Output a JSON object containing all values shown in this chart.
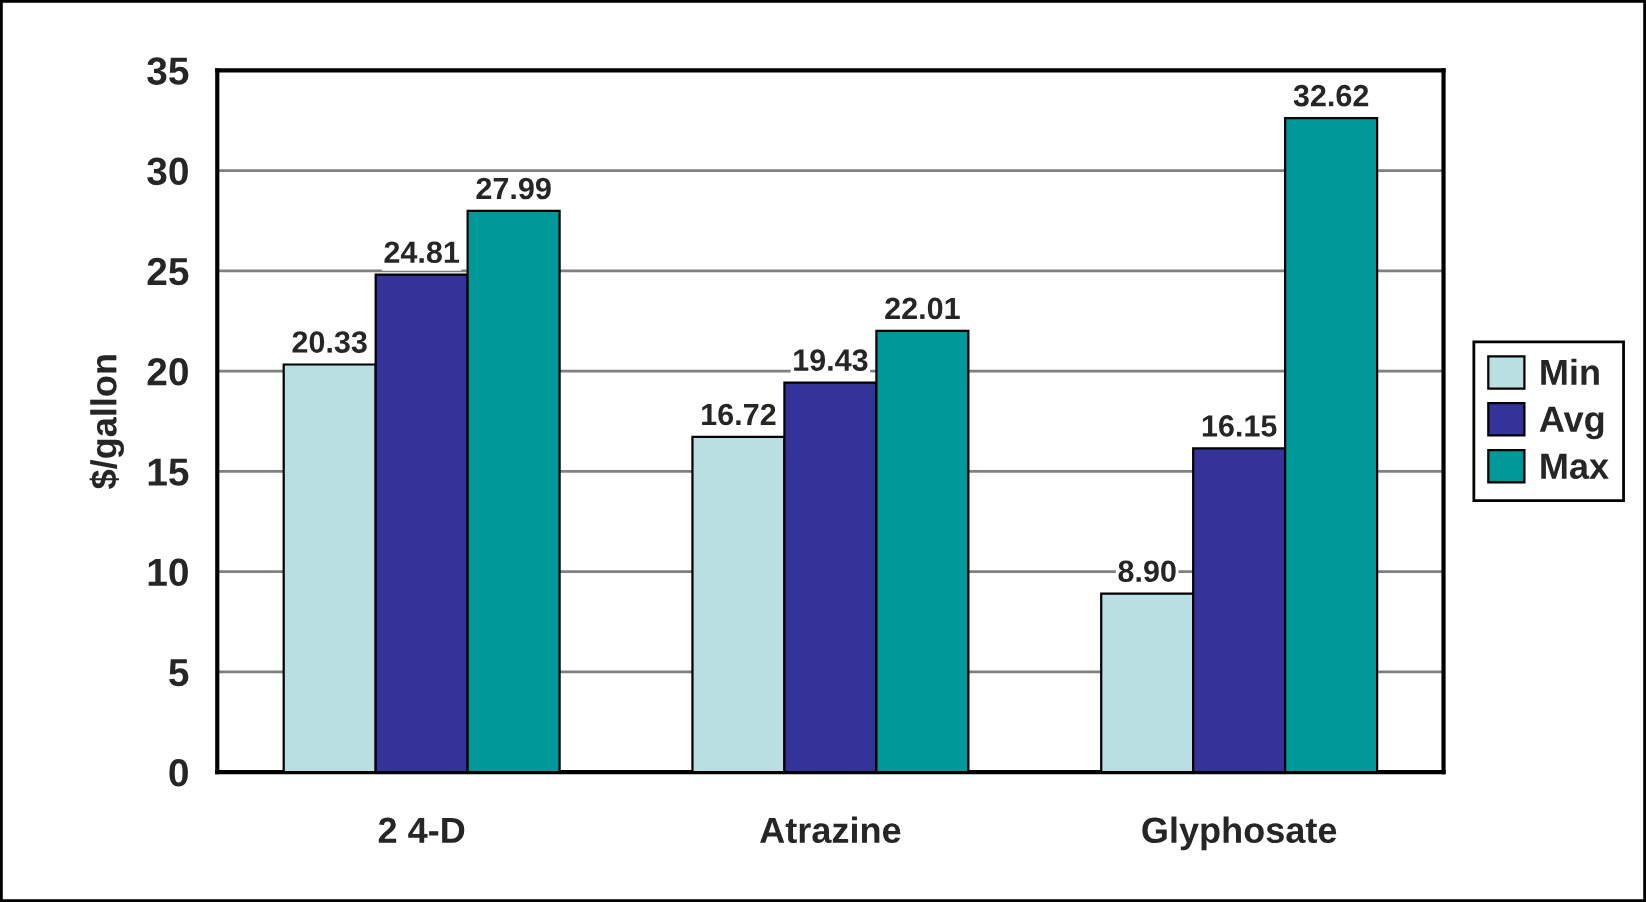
{
  "chart_data": {
    "type": "bar",
    "ylabel": "$/gallon",
    "categories": [
      "2 4-D",
      "Atrazine",
      "Glyphosate"
    ],
    "series": [
      {
        "name": "Min",
        "color": "#b9dfe2",
        "values": [
          20.33,
          16.72,
          8.9
        ],
        "value_labels": [
          "20.33",
          "16.72",
          "8.90"
        ]
      },
      {
        "name": "Avg",
        "color": "#333399",
        "values": [
          24.81,
          19.43,
          16.15
        ],
        "value_labels": [
          "24.81",
          "19.43",
          "16.15"
        ]
      },
      {
        "name": "Max",
        "color": "#009999",
        "values": [
          27.99,
          22.01,
          32.62
        ],
        "value_labels": [
          "27.99",
          "22.01",
          "32.62"
        ]
      }
    ],
    "ylim": [
      0,
      35
    ],
    "yticks": [
      0,
      5,
      10,
      15,
      20,
      25,
      30,
      35
    ],
    "grid": "y",
    "legend": "right"
  }
}
